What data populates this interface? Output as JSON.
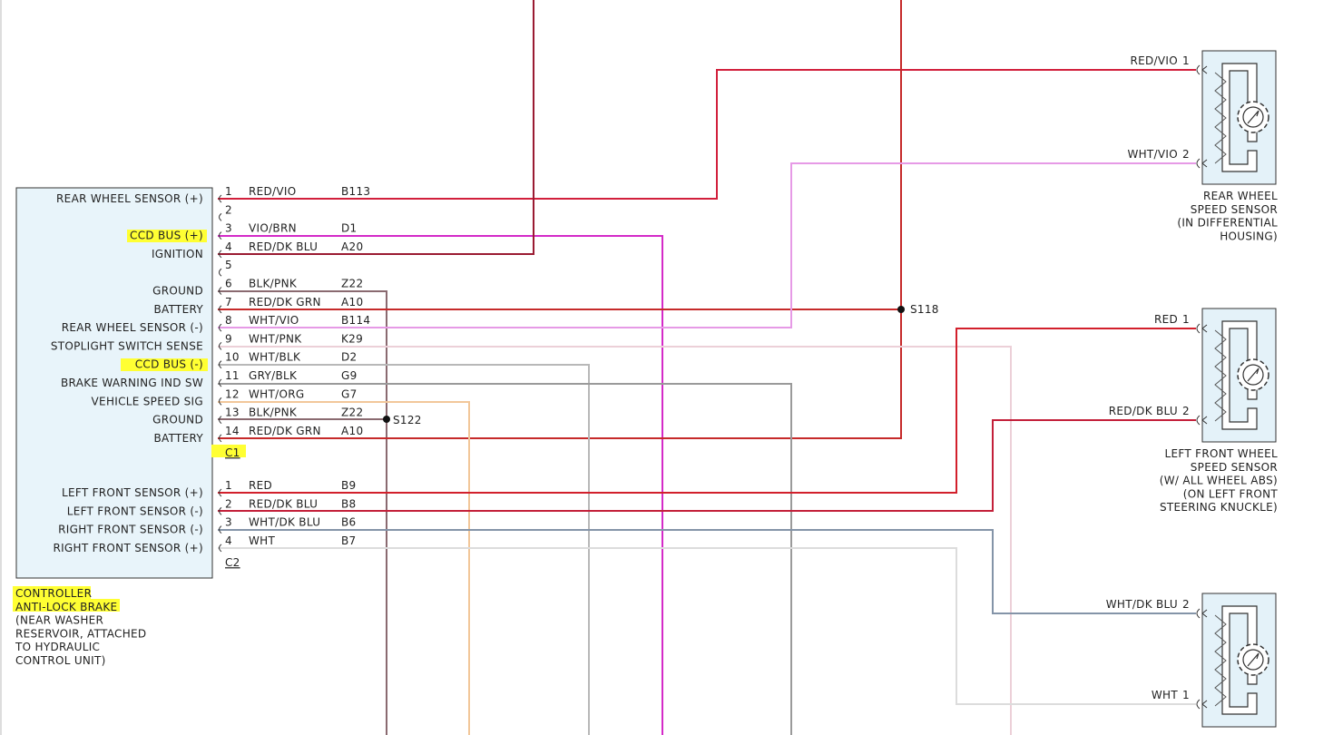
{
  "controller": {
    "name_lines": [
      "CONTROLLER",
      "ANTI-LOCK BRAKE",
      "(NEAR WASHER",
      "RESERVOIR, ATTACHED",
      "TO HYDRAULIC",
      "CONTROL UNIT)"
    ],
    "connectors": [
      {
        "name": "C1",
        "pins": [
          {
            "pin": "1",
            "function": "REAR WHEEL SENSOR (+)",
            "wire": "RED/VIO",
            "circuit": "B113"
          },
          {
            "pin": "2"
          },
          {
            "pin": "3",
            "function": "CCD BUS (+)",
            "wire": "VIO/BRN",
            "circuit": "D1"
          },
          {
            "pin": "4",
            "function": "IGNITION",
            "wire": "RED/DK BLU",
            "circuit": "A20"
          },
          {
            "pin": "5"
          },
          {
            "pin": "6",
            "function": "GROUND",
            "wire": "BLK/PNK",
            "circuit": "Z22"
          },
          {
            "pin": "7",
            "function": "BATTERY",
            "wire": "RED/DK GRN",
            "circuit": "A10"
          },
          {
            "pin": "8",
            "function": "REAR WHEEL SENSOR (-)",
            "wire": "WHT/VIO",
            "circuit": "B114"
          },
          {
            "pin": "9",
            "function": "STOPLIGHT SWITCH SENSE",
            "wire": "WHT/PNK",
            "circuit": "K29"
          },
          {
            "pin": "10",
            "function": "CCD BUS (-)",
            "wire": "WHT/BLK",
            "circuit": "D2"
          },
          {
            "pin": "11",
            "function": "BRAKE WARNING IND SW",
            "wire": "GRY/BLK",
            "circuit": "G9"
          },
          {
            "pin": "12",
            "function": "VEHICLE SPEED SIG",
            "wire": "WHT/ORG",
            "circuit": "G7"
          },
          {
            "pin": "13",
            "function": "GROUND",
            "wire": "BLK/PNK",
            "circuit": "Z22"
          },
          {
            "pin": "14",
            "function": "BATTERY",
            "wire": "RED/DK GRN",
            "circuit": "A10"
          }
        ]
      },
      {
        "name": "C2",
        "pins": [
          {
            "pin": "1",
            "function": "LEFT FRONT SENSOR (+)",
            "wire": "RED",
            "circuit": "B9"
          },
          {
            "pin": "2",
            "function": "LEFT FRONT SENSOR (-)",
            "wire": "RED/DK BLU",
            "circuit": "B8"
          },
          {
            "pin": "3",
            "function": "RIGHT FRONT SENSOR (-)",
            "wire": "WHT/DK BLU",
            "circuit": "B6"
          },
          {
            "pin": "4",
            "function": "RIGHT FRONT SENSOR (+)",
            "wire": "WHT",
            "circuit": "B7"
          }
        ]
      }
    ]
  },
  "splices": [
    "S118",
    "S122"
  ],
  "sensors": [
    {
      "name_lines": [
        "REAR WHEEL",
        "SPEED SENSOR",
        "(IN DIFFERENTIAL",
        "HOUSING)"
      ],
      "pins": [
        {
          "wire": "RED/VIO",
          "pin": "1"
        },
        {
          "wire": "WHT/VIO",
          "pin": "2"
        }
      ]
    },
    {
      "name_lines": [
        "LEFT FRONT WHEEL",
        "SPEED SENSOR",
        "(W/ ALL WHEEL ABS)",
        "(ON LEFT FRONT",
        "STEERING KNUCKLE)"
      ],
      "pins": [
        {
          "wire": "RED",
          "pin": "1"
        },
        {
          "wire": "RED/DK BLU",
          "pin": "2"
        }
      ]
    },
    {
      "name_lines": [],
      "pins": [
        {
          "wire": "WHT/DK BLU",
          "pin": "2"
        },
        {
          "wire": "WHT",
          "pin": "1"
        }
      ]
    }
  ]
}
